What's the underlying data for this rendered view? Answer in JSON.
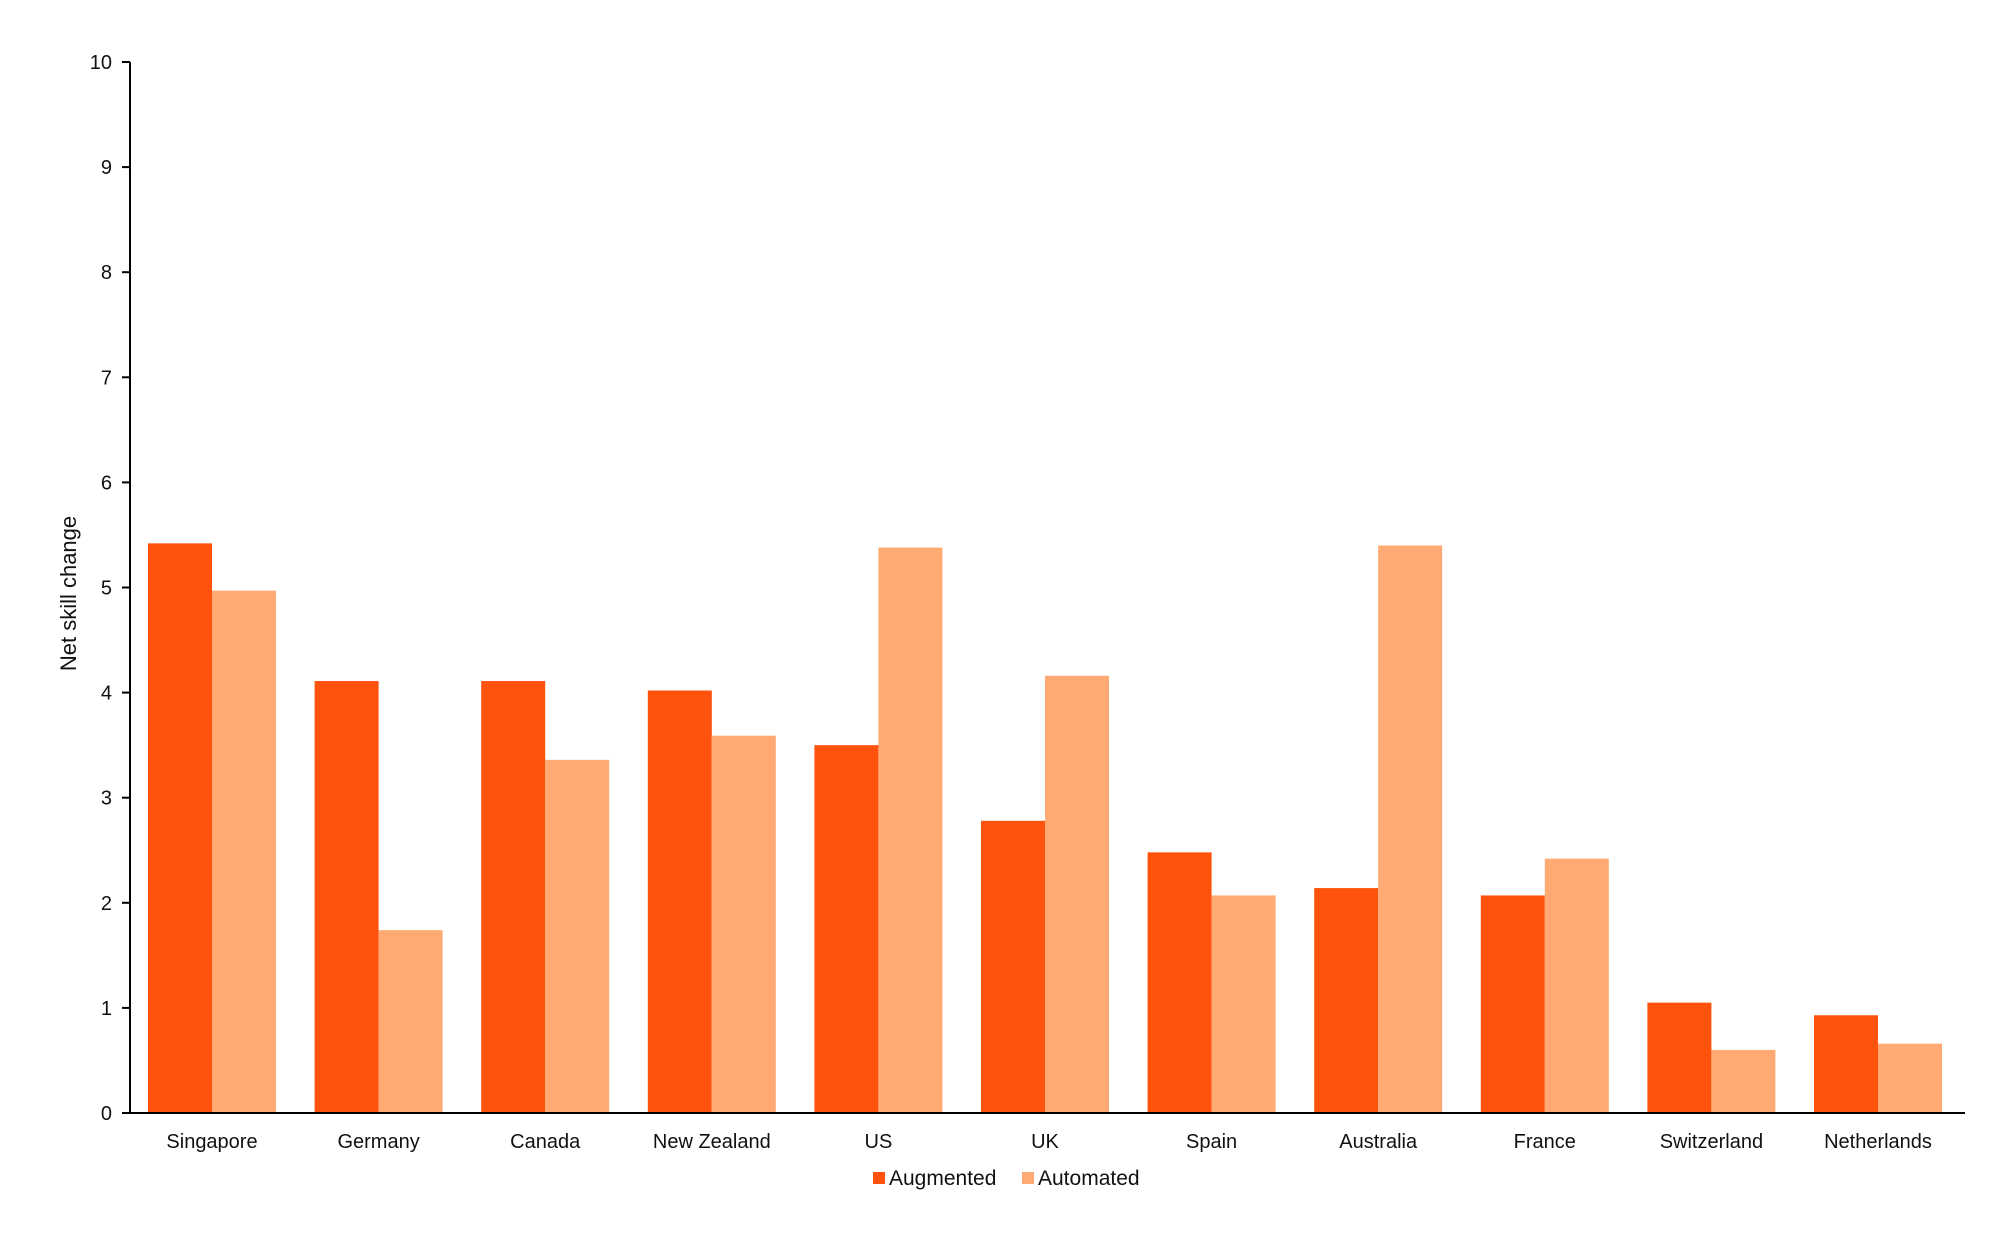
{
  "chart_data": {
    "type": "bar",
    "title": "",
    "xlabel": "",
    "ylabel": "Net skill change",
    "ylim": [
      0,
      10
    ],
    "yticks": [
      0,
      1,
      2,
      3,
      4,
      5,
      6,
      7,
      8,
      9,
      10
    ],
    "grid": false,
    "legend_position": "bottom-center",
    "categories": [
      "Singapore",
      "Germany",
      "Canada",
      "New Zealand",
      "US",
      "UK",
      "Spain",
      "Australia",
      "France",
      "Switzerland",
      "Netherlands"
    ],
    "series": [
      {
        "name": "Augmented",
        "color": "#ff520d",
        "values": [
          5.42,
          4.11,
          4.11,
          4.02,
          3.5,
          2.78,
          2.48,
          2.14,
          2.07,
          1.05,
          0.93
        ]
      },
      {
        "name": "Automated",
        "color": "#ffaa72",
        "values": [
          4.97,
          1.74,
          3.36,
          3.59,
          5.38,
          4.16,
          2.07,
          5.4,
          2.42,
          0.6,
          0.66
        ]
      }
    ]
  }
}
